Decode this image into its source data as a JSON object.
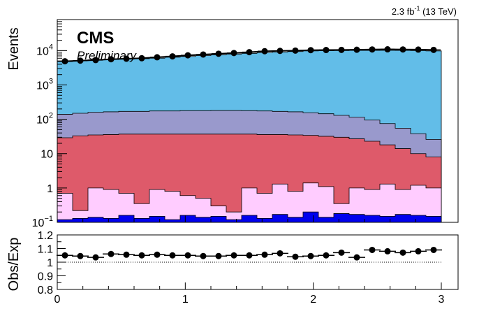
{
  "header": {
    "lumi_value": "2.3 fb",
    "lumi_exponent": "-1",
    "lumi_energy": "(13 TeV)",
    "experiment": "CMS",
    "status": "Preliminary"
  },
  "chart_data": [
    {
      "type": "area",
      "panel": "main",
      "stacked": true,
      "log_scale_y": true,
      "ylabel": "Events",
      "xlim": [
        0,
        3.0
      ],
      "ylim": [
        0.1,
        80000
      ],
      "y_ticks": [
        {
          "value": 0.1,
          "base": "10",
          "exp": "−1"
        },
        {
          "value": 1,
          "label": "1"
        },
        {
          "value": 10,
          "label": "10"
        },
        {
          "value": 100,
          "base": "10",
          "exp": "2"
        },
        {
          "value": 1000,
          "base": "10",
          "exp": "3"
        },
        {
          "value": 10000,
          "base": "10",
          "exp": "4"
        }
      ],
      "bin_edges": [
        0.0,
        0.12,
        0.24,
        0.36,
        0.48,
        0.6,
        0.72,
        0.84,
        0.96,
        1.08,
        1.2,
        1.32,
        1.44,
        1.56,
        1.68,
        1.8,
        1.92,
        2.04,
        2.16,
        2.28,
        2.4,
        2.52,
        2.64,
        2.76,
        2.88,
        3.0
      ],
      "stack_totals": [
        {
          "name": "",
          "color": "#0000ee",
          "values": [
            0.12,
            0.13,
            0.14,
            0.13,
            0.16,
            0.13,
            0.15,
            0.12,
            0.16,
            0.14,
            0.15,
            0.12,
            0.16,
            0.13,
            0.17,
            0.14,
            0.2,
            0.14,
            0.18,
            0.17,
            0.16,
            0.15,
            0.17,
            0.16,
            0.15
          ]
        },
        {
          "name": "",
          "color": "#ffccff",
          "values": [
            0.7,
            0.22,
            1.0,
            0.9,
            0.7,
            0.35,
            0.9,
            0.8,
            0.6,
            0.5,
            0.3,
            0.2,
            1.0,
            0.7,
            1.3,
            0.8,
            1.4,
            1.1,
            0.35,
            1.0,
            0.9,
            1.3,
            0.9,
            1.2,
            1.0
          ]
        },
        {
          "name": "",
          "color": "#de5a6a",
          "values": [
            29,
            33,
            35,
            36,
            37,
            37,
            37,
            37,
            37,
            37,
            37,
            37,
            37,
            36,
            36,
            35,
            34,
            32,
            30,
            27,
            23,
            18,
            14,
            10,
            8
          ]
        },
        {
          "name": "",
          "color": "#9999cc",
          "values": [
            140,
            150,
            160,
            165,
            170,
            170,
            175,
            175,
            178,
            178,
            180,
            180,
            178,
            175,
            170,
            165,
            155,
            145,
            130,
            115,
            95,
            75,
            55,
            38,
            26
          ]
        },
        {
          "name": "",
          "color": "#62bde8",
          "values": [
            4800,
            5100,
            5350,
            5500,
            5650,
            5800,
            6000,
            6400,
            6750,
            7150,
            7550,
            7900,
            8300,
            8750,
            9050,
            9400,
            9750,
            9900,
            10000,
            10100,
            10150,
            10200,
            10150,
            10000,
            9800
          ]
        }
      ],
      "data_points": {
        "x": [
          0.06,
          0.18,
          0.3,
          0.42,
          0.54,
          0.66,
          0.78,
          0.9,
          1.02,
          1.14,
          1.26,
          1.38,
          1.5,
          1.62,
          1.74,
          1.86,
          1.98,
          2.1,
          2.22,
          2.34,
          2.46,
          2.58,
          2.7,
          2.82,
          2.94
        ],
        "y": [
          4900,
          5100,
          5300,
          5600,
          5800,
          6000,
          6400,
          6800,
          7300,
          7700,
          8100,
          8500,
          9000,
          9600,
          9800,
          10000,
          10300,
          10400,
          10500,
          10600,
          10800,
          10900,
          10800,
          10700,
          10500
        ]
      }
    },
    {
      "type": "scatter",
      "panel": "ratio",
      "ylabel": "Obs/Exp",
      "xlim": [
        0,
        3.0
      ],
      "ylim": [
        0.8,
        1.2
      ],
      "y_ticks": [
        "0.8",
        "0.9",
        "1",
        "1.1",
        "1.2"
      ],
      "x_ticks": [
        "0",
        "1",
        "2",
        "3"
      ],
      "reference_line": 1.0,
      "x": [
        0.06,
        0.18,
        0.3,
        0.42,
        0.54,
        0.66,
        0.78,
        0.9,
        1.02,
        1.14,
        1.26,
        1.38,
        1.5,
        1.62,
        1.74,
        1.86,
        1.98,
        2.1,
        2.22,
        2.34,
        2.46,
        2.58,
        2.7,
        2.82,
        2.94
      ],
      "y": [
        1.05,
        1.045,
        1.035,
        1.06,
        1.055,
        1.05,
        1.055,
        1.05,
        1.05,
        1.045,
        1.045,
        1.05,
        1.05,
        1.055,
        1.065,
        1.04,
        1.045,
        1.05,
        1.07,
        1.035,
        1.09,
        1.08,
        1.07,
        1.08,
        1.09
      ]
    }
  ]
}
